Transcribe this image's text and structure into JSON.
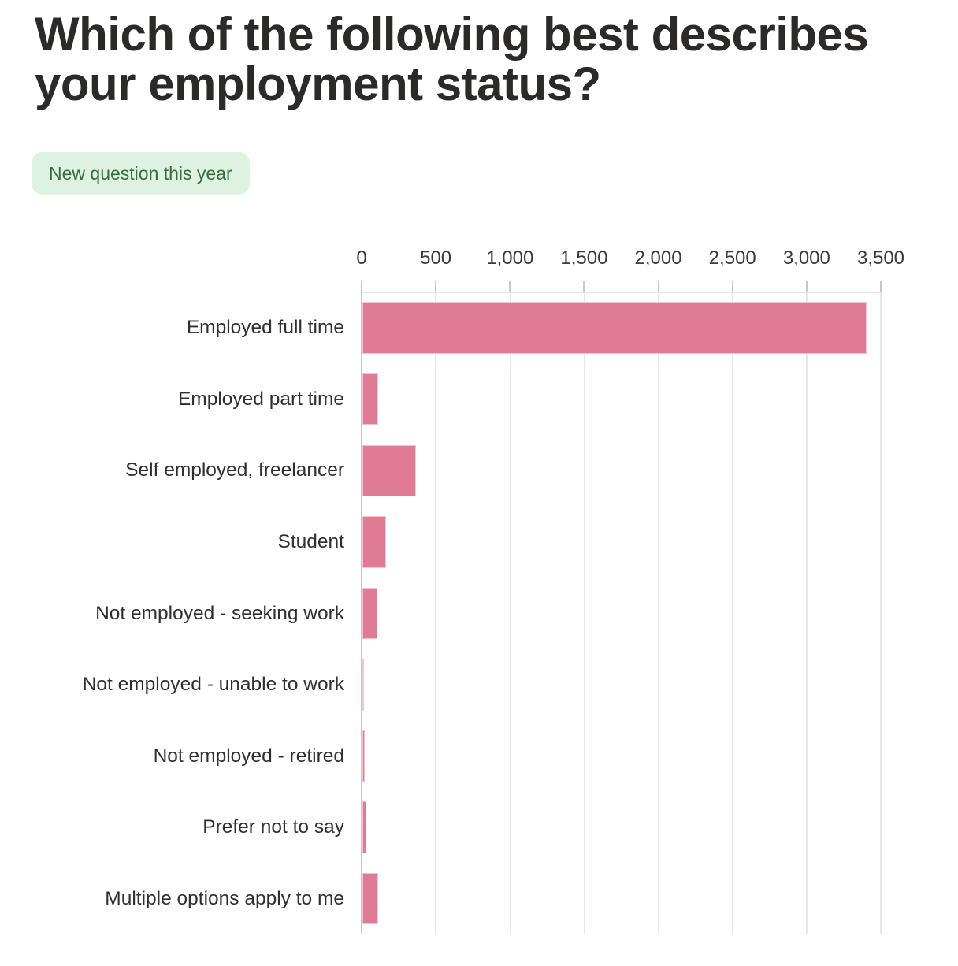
{
  "header": {
    "title": "Which of the following best describes\nyour employment status?",
    "badge_label": "New question this year"
  },
  "style": {
    "background": "#ffffff",
    "title_color": "#2b2a28",
    "badge_bg": "#def2e2",
    "badge_text_color": "#386c42"
  },
  "chart_data": {
    "type": "bar",
    "orientation": "horizontal",
    "title": "Which of the following best describes your employment status?",
    "subtitle_badge": "New question this year",
    "categories": [
      "Employed full time",
      "Employed part time",
      "Self employed, freelancer",
      "Student",
      "Not employed - seeking work",
      "Not employed - unable to work",
      "Not employed - retired",
      "Prefer not to say",
      "Multiple options apply to me"
    ],
    "values": [
      3400,
      105,
      360,
      160,
      100,
      5,
      15,
      25,
      105
    ],
    "xlabel": "",
    "ylabel": "",
    "x_axis": {
      "position": "top",
      "min": 0,
      "max": 3500,
      "tick_values": [
        0,
        500,
        1000,
        1500,
        2000,
        2500,
        3000,
        3500
      ],
      "tick_labels": [
        "0",
        "500",
        "1,000",
        "1,500",
        "2,000",
        "2,500",
        "3,000",
        "3,500"
      ]
    },
    "grid": "vertical-only",
    "legend": "none",
    "colors": {
      "bar_fill": "#e07b95",
      "bar_edge": "#f3c3d0",
      "gridline": "#e6e6e6",
      "axis_spine": "#c8c8c8",
      "tick_mark": "#c8c8c8",
      "tick_label_color": "#3a3a3a",
      "category_label_color": "#2f2f2f"
    }
  }
}
